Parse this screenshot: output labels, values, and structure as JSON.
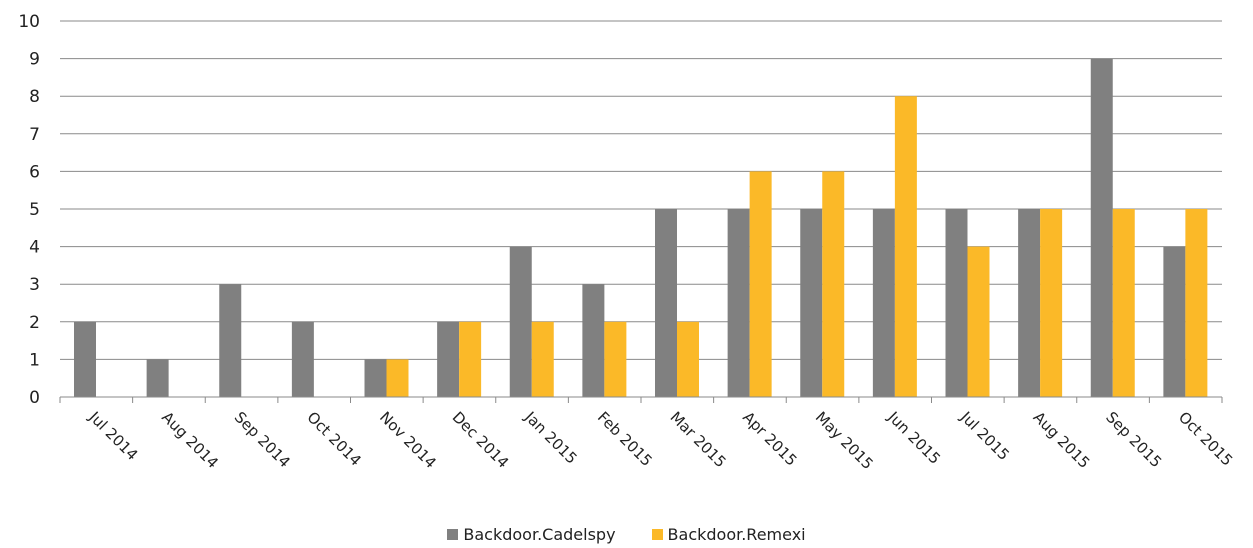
{
  "chart_data": {
    "type": "bar",
    "title": "",
    "xlabel": "",
    "ylabel": "",
    "ylim": [
      0,
      10
    ],
    "yticks": [
      "0",
      "1",
      "2",
      "3",
      "4",
      "5",
      "6",
      "7",
      "8",
      "9",
      "10"
    ],
    "grid": true,
    "legend_position": "bottom",
    "categories": [
      "Jul 2014",
      "Aug 2014",
      "Sep 2014",
      "Oct 2014",
      "Nov 2014",
      "Dec 2014",
      "Jan 2015",
      "Feb 2015",
      "Mar 2015",
      "Apr 2015",
      "May 2015",
      "Jun 2015",
      "Jul 2015",
      "Aug 2015",
      "Sep 2015",
      "Oct 2015"
    ],
    "series": [
      {
        "name": "Backdoor.Cadelspy",
        "color": "#808080",
        "values": [
          2,
          1,
          3,
          2,
          1,
          2,
          4,
          3,
          5,
          5,
          5,
          5,
          5,
          5,
          9,
          4
        ]
      },
      {
        "name": "Backdoor.Remexi",
        "color": "#FBB928",
        "values": [
          0,
          0,
          0,
          0,
          1,
          2,
          2,
          2,
          2,
          6,
          6,
          8,
          4,
          5,
          5,
          5
        ]
      }
    ]
  }
}
